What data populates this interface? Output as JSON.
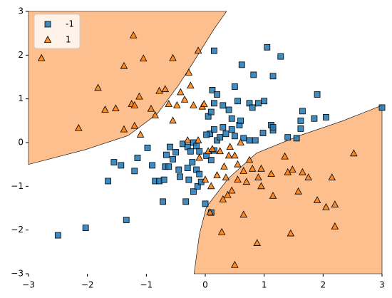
{
  "chart_data": {
    "type": "scatter",
    "xlim": [
      -3,
      3
    ],
    "ylim": [
      -3,
      3
    ],
    "xticks": [
      {
        "value": -3,
        "label": "−3"
      },
      {
        "value": -2,
        "label": "−2"
      },
      {
        "value": -1,
        "label": "−1"
      },
      0,
      1,
      2,
      3
    ],
    "yticks": [
      {
        "value": -3,
        "label": "−3"
      },
      {
        "value": -2,
        "label": "−2"
      },
      {
        "value": -1,
        "label": "−1"
      },
      0,
      1,
      2,
      3
    ],
    "legend": "upper left",
    "regions": [
      {
        "color": "#fdbf8e",
        "x": [
          -3,
          -3,
          -2.03,
          -1.31,
          -0.82,
          -0.46,
          -0.22,
          0.15,
          0.36
        ],
        "y": [
          3,
          -0.5,
          -0.16,
          0.16,
          0.65,
          1.3,
          1.8,
          2.6,
          3
        ]
      },
      {
        "color": "#fdbf8e",
        "x": [
          3,
          -0.19,
          -0.1,
          0.02,
          0.39,
          0.87,
          1.6,
          2.32,
          3
        ],
        "y": [
          -3,
          -3,
          -2.1,
          -1.47,
          -0.82,
          -0.24,
          0.16,
          0.49,
          0.85
        ]
      }
    ],
    "series": [
      {
        "name": "-1",
        "color": "#1f77b4",
        "marker": "square",
        "x": [
          -2.5,
          -2.03,
          -1.34,
          -1.65,
          -1.55,
          -1.43,
          -1.2,
          -1.15,
          -0.98,
          -0.9,
          -0.85,
          -0.78,
          -0.7,
          -0.68,
          -0.66,
          -0.6,
          -0.55,
          -0.5,
          -0.45,
          -0.43,
          -0.33,
          -0.3,
          -0.28,
          -0.2,
          -0.15,
          -0.13,
          -0.1,
          -0.07,
          0.0,
          0.1,
          -0.38,
          -0.3,
          -0.25,
          -0.2,
          -0.15,
          -0.1,
          0.02,
          0.1,
          0.15,
          0.08,
          0.02,
          0.15,
          0.2,
          0.25,
          0.3,
          0.35,
          0.45,
          0.5,
          0.58,
          0.6,
          0.65,
          0.75,
          0.85,
          0.98,
          1.12,
          1.15,
          1.15,
          1.4,
          1.55,
          1.62,
          1.62,
          1.65,
          1.85,
          2.05,
          1.9,
          3.0,
          0.05,
          0.1,
          0.15,
          0.12,
          0.2,
          0.3,
          0.4,
          0.45,
          0.5,
          0.55,
          0.62,
          0.75,
          0.8,
          0.82,
          0.9,
          1.0,
          1.05,
          1.15,
          1.28,
          0.15,
          -0.62,
          -0.22,
          -0.72
        ],
        "y": [
          -2.12,
          -1.95,
          -1.77,
          -0.88,
          -0.45,
          -0.52,
          -0.65,
          -0.35,
          -0.12,
          -0.52,
          -0.88,
          -0.88,
          -0.85,
          -0.55,
          -0.28,
          -0.1,
          -0.38,
          -0.22,
          -0.62,
          -0.78,
          -1.35,
          -0.58,
          -0.85,
          -1.12,
          -0.62,
          -1.0,
          -0.72,
          -0.9,
          -1.4,
          -1.6,
          -0.03,
          -0.1,
          -0.2,
          0.0,
          -0.08,
          -0.2,
          -0.3,
          -0.4,
          -0.18,
          0.2,
          0.18,
          0.3,
          0.05,
          0.12,
          0.35,
          0.2,
          0.3,
          0.15,
          0.4,
          0.5,
          0.1,
          0.05,
          0.05,
          0.22,
          0.4,
          0.28,
          0.35,
          0.12,
          0.1,
          0.5,
          0.32,
          0.72,
          0.55,
          0.58,
          1.1,
          0.8,
          0.6,
          0.7,
          0.9,
          1.2,
          1.1,
          0.85,
          0.75,
          0.55,
          1.28,
          0.95,
          1.78,
          0.9,
          0.8,
          1.55,
          0.9,
          0.95,
          2.18,
          1.52,
          1.97,
          2.1,
          -0.55,
          -0.45,
          -1.35
        ]
      },
      {
        "name": "1",
        "color": "#ff7f0e",
        "marker": "triangle",
        "x": [
          -2.78,
          -2.15,
          -1.82,
          -1.7,
          -1.52,
          -1.38,
          -1.38,
          -1.25,
          -1.2,
          -1.2,
          -1.22,
          -1.12,
          -1.1,
          -1.05,
          -0.92,
          -0.85,
          -0.78,
          -0.68,
          -0.62,
          -0.55,
          -0.48,
          -0.42,
          -0.35,
          -0.28,
          -0.25,
          -0.12,
          -0.2,
          -0.05,
          -0.02,
          -0.55,
          -0.3,
          -0.12,
          0.05,
          0.12,
          0.25,
          0.32,
          0.42,
          0.5,
          0.55,
          0.65,
          0.7,
          0.8,
          0.9,
          0.95,
          1.12,
          1.15,
          1.35,
          1.4,
          1.48,
          1.65,
          1.75,
          1.45,
          1.58,
          1.9,
          2.05,
          2.15,
          2.2,
          2.2,
          2.52,
          0.08,
          0.3,
          0.38,
          0.45,
          0.28,
          0.5,
          0.65,
          0.88,
          0.95,
          0.35,
          0.55,
          0.1,
          0.2,
          0.75,
          0.6,
          -0.1,
          0.4,
          0.0
        ],
        "y": [
          1.93,
          0.33,
          1.25,
          0.75,
          0.78,
          1.75,
          0.3,
          0.88,
          0.38,
          0.85,
          2.45,
          1.05,
          0.18,
          1.92,
          0.77,
          0.62,
          1.18,
          1.22,
          0.88,
          1.93,
          0.85,
          1.15,
          0.98,
          1.6,
          1.3,
          2.1,
          0.85,
          0.82,
          0.88,
          0.5,
          0.05,
          0.05,
          -0.2,
          -0.15,
          -0.2,
          -0.55,
          -0.1,
          -0.3,
          -0.5,
          -0.65,
          -0.9,
          -0.6,
          -0.8,
          -0.6,
          -0.72,
          -1.22,
          -0.32,
          -0.68,
          -0.62,
          -0.68,
          -0.8,
          -2.08,
          -1.12,
          -1.32,
          -1.48,
          -0.8,
          -1.42,
          -1.92,
          -0.25,
          -1.6,
          -1.3,
          -1.2,
          -1.1,
          -2.05,
          -2.8,
          -1.65,
          -2.3,
          -1.0,
          -0.8,
          -0.85,
          -1.0,
          -0.75,
          -0.4,
          0.0,
          -0.35,
          -0.3,
          -0.85
        ]
      }
    ]
  }
}
